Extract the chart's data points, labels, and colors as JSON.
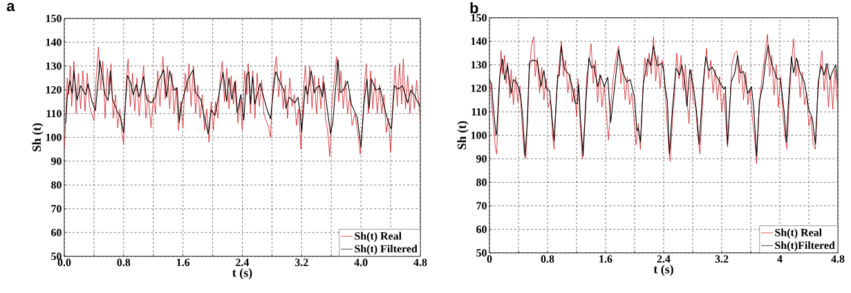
{
  "chart_data": [
    {
      "type": "line",
      "title": "a",
      "xlabel": "t (s)",
      "ylabel": "Sh (t)",
      "xlim": [
        0,
        4.8
      ],
      "ylim": [
        50,
        150
      ],
      "xticks": [
        {
          "value": 0,
          "label": "0.0"
        },
        {
          "value": 0.4,
          "label": null
        },
        0.8,
        {
          "value": 1.2,
          "label": null
        },
        1.6,
        {
          "value": 2.0,
          "label": null
        },
        2.4,
        {
          "value": 2.8,
          "label": null
        },
        3.2,
        {
          "value": 3.6,
          "label": null
        },
        {
          "value": 4,
          "label": "4.0"
        },
        {
          "value": 4.4,
          "label": null
        },
        4.8
      ],
      "yticks": [
        50,
        60,
        70,
        80,
        90,
        100,
        110,
        120,
        130,
        140,
        150
      ],
      "grid": true,
      "legend": "bottom right",
      "series": [
        {
          "name": "Sh(t) Real",
          "color": "#d0141c",
          "x": [
            0,
            0.02,
            0.04,
            0.06,
            0.08,
            0.1,
            0.13,
            0.16,
            0.19,
            0.22,
            0.25,
            0.28,
            0.31,
            0.34,
            0.37,
            0.4,
            0.43,
            0.46,
            0.49,
            0.52,
            0.55,
            0.58,
            0.61,
            0.63,
            0.66,
            0.69,
            0.72,
            0.75,
            0.78,
            0.8,
            0.83,
            0.86,
            0.89,
            0.92,
            0.95,
            0.98,
            1.01,
            1.04,
            1.07,
            1.1,
            1.13,
            1.17,
            1.2,
            1.23,
            1.26,
            1.29,
            1.33,
            1.36,
            1.39,
            1.42,
            1.45,
            1.48,
            1.51,
            1.54,
            1.57,
            1.6,
            1.63,
            1.66,
            1.68,
            1.71,
            1.74,
            1.77,
            1.8,
            1.83,
            1.86,
            1.89,
            1.92,
            1.95,
            1.98,
            2.01,
            2.04,
            2.07,
            2.1,
            2.13,
            2.16,
            2.19,
            2.22,
            2.25,
            2.28,
            2.31,
            2.34,
            2.37,
            2.4,
            2.43,
            2.46,
            2.48,
            2.51,
            2.54,
            2.57,
            2.6,
            2.63,
            2.66,
            2.69,
            2.72,
            2.75,
            2.78,
            2.81,
            2.84,
            2.86,
            2.89,
            2.92,
            2.95,
            2.98,
            3.01,
            3.04,
            3.07,
            3.1,
            3.13,
            3.16,
            3.19,
            3.22,
            3.25,
            3.28,
            3.31,
            3.34,
            3.37,
            3.4,
            3.43,
            3.46,
            3.49,
            3.52,
            3.55,
            3.58,
            3.61,
            3.64,
            3.67,
            3.7,
            3.73,
            3.76,
            3.79,
            3.82,
            3.85,
            3.88,
            3.92,
            3.96,
            3.99,
            4.02,
            4.05,
            4.07,
            4.1,
            4.13,
            4.16,
            4.19,
            4.22,
            4.25,
            4.28,
            4.31,
            4.34,
            4.37,
            4.4,
            4.43,
            4.46,
            4.49,
            4.52,
            4.55,
            4.57,
            4.6,
            4.63,
            4.66,
            4.69,
            4.72,
            4.75,
            4.78,
            4.8
          ],
          "values": [
            95,
            108,
            125,
            118,
            130,
            113,
            132,
            110,
            127,
            112,
            128,
            111,
            127,
            113,
            110,
            107,
            125,
            138,
            120,
            132,
            108,
            129,
            118,
            131,
            108,
            118,
            104,
            112,
            101,
            97,
            120,
            133,
            113,
            127,
            111,
            125,
            109,
            120,
            130,
            108,
            118,
            104,
            117,
            110,
            128,
            113,
            134,
            116,
            130,
            112,
            127,
            110,
            121,
            103,
            115,
            104,
            127,
            119,
            131,
            113,
            130,
            110,
            122,
            108,
            118,
            103,
            112,
            98,
            115,
            103,
            115,
            108,
            124,
            132,
            115,
            129,
            112,
            126,
            114,
            124,
            106,
            116,
            103,
            128,
            118,
            131,
            110,
            128,
            108,
            127,
            113,
            124,
            110,
            107,
            105,
            100,
            120,
            130,
            134,
            117,
            128,
            112,
            122,
            108,
            125,
            113,
            118,
            105,
            112,
            95,
            118,
            130,
            114,
            130,
            112,
            126,
            110,
            125,
            112,
            126,
            108,
            103,
            92,
            115,
            124,
            134,
            115,
            128,
            112,
            124,
            110,
            118,
            105,
            110,
            101,
            93,
            104,
            123,
            131,
            110,
            128,
            112,
            125,
            110,
            122,
            110,
            118,
            102,
            108,
            94,
            115,
            130,
            113,
            131,
            114,
            133,
            112,
            126,
            110,
            122,
            112,
            124,
            114,
            106
          ]
        },
        {
          "name": "Sh(t) Filtered",
          "color": "#000000",
          "x": [
            0.02,
            0.04,
            0.075,
            0.107,
            0.13,
            0.17,
            0.22,
            0.29,
            0.32,
            0.37,
            0.42,
            0.48,
            0.55,
            0.59,
            0.62,
            0.65,
            0.71,
            0.76,
            0.8,
            0.85,
            0.89,
            0.93,
            0.97,
            1.01,
            1.07,
            1.11,
            1.17,
            1.22,
            1.26,
            1.34,
            1.38,
            1.42,
            1.48,
            1.52,
            1.55,
            1.58,
            1.63,
            1.67,
            1.74,
            1.77,
            1.84,
            1.89,
            1.94,
            1.98,
            2.03,
            2.07,
            2.14,
            2.19,
            2.22,
            2.26,
            2.3,
            2.33,
            2.38,
            2.42,
            2.46,
            2.49,
            2.51,
            2.54,
            2.57,
            2.64,
            2.68,
            2.73,
            2.78,
            2.81,
            2.85,
            2.9,
            2.96,
            2.99,
            3.03,
            3.11,
            3.15,
            3.18,
            3.2,
            3.25,
            3.28,
            3.33,
            3.37,
            3.4,
            3.44,
            3.48,
            3.5,
            3.54,
            3.59,
            3.62,
            3.69,
            3.72,
            3.76,
            3.82,
            3.87,
            3.95,
            4.0,
            4.04,
            4.08,
            4.11,
            4.14,
            4.2,
            4.26,
            4.3,
            4.36,
            4.41,
            4.45,
            4.5,
            4.56,
            4.63,
            4.67,
            4.72,
            4.77,
            4.8
          ],
          "values": [
            106,
            117,
            123.8,
            118.4,
            128,
            115.5,
            121.7,
            117.9,
            122.7,
            115.5,
            111.2,
            132.3,
            117.9,
            115.5,
            128,
            116,
            111.2,
            108.3,
            102,
            126,
            123.2,
            117.9,
            122.3,
            116.9,
            125.6,
            116,
            114.5,
            116.4,
            122.7,
            128.5,
            116.9,
            128,
            119.8,
            120.8,
            106.3,
            114,
            119.8,
            124.6,
            128.5,
            118.8,
            116,
            108.3,
            101.5,
            111.6,
            109.2,
            115.5,
            127.5,
            115,
            125.1,
            116,
            123.5,
            110.2,
            118,
            107.3,
            126.5,
            127.5,
            114,
            125.6,
            114,
            122.7,
            117.9,
            112.1,
            107.8,
            116.9,
            127.7,
            123.7,
            119.8,
            112.1,
            116.9,
            114.5,
            116.9,
            110.2,
            102,
            121.7,
            117.9,
            128,
            118.8,
            120.8,
            121.7,
            117,
            123.2,
            113,
            101.5,
            106.3,
            132.8,
            118.8,
            119.8,
            123.7,
            114,
            108.3,
            95.8,
            114,
            124.6,
            112.1,
            124.6,
            119.8,
            120.8,
            114.5,
            107.3,
            103.5,
            121.7,
            120.3,
            121.7,
            114.5,
            119.8,
            117.9,
            114.5,
            113
          ]
        }
      ]
    },
    {
      "type": "line",
      "title": "b",
      "xlabel": "t (s)",
      "ylabel": "Sh (t)",
      "xlim": [
        0,
        4.8
      ],
      "ylim": [
        50,
        150
      ],
      "xticks": [
        0,
        {
          "value": 0.4,
          "label": null
        },
        0.8,
        {
          "value": 1.2,
          "label": null
        },
        1.6,
        {
          "value": 2.0,
          "label": null
        },
        2.4,
        {
          "value": 2.8,
          "label": null
        },
        3.2,
        {
          "value": 3.6,
          "label": null
        },
        4,
        {
          "value": 4.4,
          "label": null
        },
        4.8
      ],
      "yticks": [
        50,
        60,
        70,
        80,
        90,
        100,
        110,
        120,
        130,
        140,
        150
      ],
      "grid": true,
      "legend": "bottom right",
      "series": [
        {
          "name": "Sh(t) Real",
          "color": "#d0141c",
          "x": [
            0,
            0.02,
            0.04,
            0.06,
            0.08,
            0.1,
            0.12,
            0.14,
            0.16,
            0.18,
            0.21,
            0.23,
            0.25,
            0.28,
            0.3,
            0.33,
            0.36,
            0.39,
            0.42,
            0.45,
            0.48,
            0.5,
            0.53,
            0.55,
            0.58,
            0.61,
            0.63,
            0.66,
            0.69,
            0.72,
            0.75,
            0.78,
            0.81,
            0.84,
            0.87,
            0.89,
            0.92,
            0.95,
            0.99,
            1.02,
            1.05,
            1.08,
            1.11,
            1.14,
            1.17,
            1.2,
            1.22,
            1.25,
            1.28,
            1.31,
            1.34,
            1.37,
            1.4,
            1.43,
            1.46,
            1.49,
            1.52,
            1.55,
            1.58,
            1.61,
            1.64,
            1.67,
            1.7,
            1.75,
            1.78,
            1.81,
            1.84,
            1.87,
            1.9,
            1.93,
            1.96,
            1.99,
            2.02,
            2.05,
            2.08,
            2.11,
            2.14,
            2.17,
            2.2,
            2.23,
            2.26,
            2.29,
            2.32,
            2.35,
            2.38,
            2.4,
            2.43,
            2.45,
            2.47,
            2.49,
            2.52,
            2.55,
            2.58,
            2.61,
            2.64,
            2.67,
            2.7,
            2.73,
            2.75,
            2.78,
            2.81,
            2.84,
            2.87,
            2.9,
            2.93,
            2.96,
            2.99,
            3.02,
            3.05,
            3.08,
            3.11,
            3.14,
            3.17,
            3.2,
            3.23,
            3.26,
            3.28,
            3.31,
            3.34,
            3.38,
            3.41,
            3.44,
            3.47,
            3.5,
            3.53,
            3.56,
            3.59,
            3.62,
            3.65,
            3.68,
            3.71,
            3.74,
            3.77,
            3.8,
            3.83,
            3.86,
            3.89,
            3.92,
            3.95,
            3.98,
            4.01,
            4.04,
            4.07,
            4.1,
            4.13,
            4.16,
            4.19,
            4.22,
            4.25,
            4.28,
            4.31,
            4.34,
            4.37,
            4.4,
            4.43,
            4.46,
            4.49,
            4.52,
            4.55,
            4.58,
            4.61,
            4.64,
            4.67,
            4.7,
            4.73,
            4.76,
            4.79,
            4.8
          ],
          "values": [
            125,
            118,
            110,
            103,
            95,
            92,
            110,
            122,
            136,
            126,
            134,
            122,
            131,
            116,
            128,
            113,
            125,
            114,
            121,
            104,
            92,
            90,
            110,
            128,
            138,
            142,
            125,
            133,
            118,
            129,
            115,
            124,
            112,
            115,
            100,
            94,
            115,
            127,
            140,
            125,
            132,
            118,
            126,
            114,
            120,
            108,
            124,
            105,
            90,
            105,
            125,
            131,
            139,
            122,
            132,
            114,
            126,
            112,
            121,
            110,
            98,
            112,
            123,
            134,
            138,
            122,
            130,
            115,
            125,
            113,
            118,
            108,
            96,
            105,
            94,
            118,
            133,
            125,
            135,
            126,
            142,
            123,
            134,
            120,
            132,
            128,
            115,
            104,
            94,
            89,
            106,
            118,
            135,
            124,
            134,
            119,
            130,
            112,
            105,
            128,
            115,
            112,
            100,
            92,
            110,
            126,
            137,
            124,
            132,
            118,
            128,
            115,
            125,
            110,
            118,
            104,
            95,
            112,
            130,
            135,
            136,
            122,
            130,
            115,
            127,
            113,
            120,
            108,
            100,
            88,
            108,
            120,
            128,
            135,
            143,
            125,
            134,
            117,
            130,
            112,
            125,
            110,
            100,
            94,
            115,
            130,
            141,
            125,
            132,
            116,
            127,
            113,
            118,
            104,
            108,
            96,
            94,
            115,
            128,
            136,
            119,
            129,
            112,
            125,
            111,
            128,
            115,
            112
          ]
        },
        {
          "name": "Sh(t)Filtered",
          "color": "#000000",
          "x": [
            0,
            0.03,
            0.05,
            0.09,
            0.1,
            0.14,
            0.18,
            0.21,
            0.25,
            0.3,
            0.33,
            0.38,
            0.43,
            0.46,
            0.49,
            0.52,
            0.55,
            0.59,
            0.66,
            0.71,
            0.75,
            0.78,
            0.83,
            0.87,
            0.89,
            0.94,
            0.96,
            0.99,
            1.03,
            1.1,
            1.14,
            1.18,
            1.21,
            1.23,
            1.25,
            1.29,
            1.33,
            1.37,
            1.41,
            1.44,
            1.49,
            1.53,
            1.58,
            1.63,
            1.67,
            1.71,
            1.78,
            1.83,
            1.89,
            1.94,
            2.0,
            2.03,
            2.05,
            2.08,
            2.12,
            2.18,
            2.22,
            2.26,
            2.31,
            2.37,
            2.4,
            2.42,
            2.45,
            2.48,
            2.52,
            2.57,
            2.62,
            2.65,
            2.69,
            2.72,
            2.76,
            2.81,
            2.85,
            2.89,
            2.94,
            2.98,
            3.02,
            3.07,
            3.12,
            3.18,
            3.23,
            3.25,
            3.28,
            3.33,
            3.38,
            3.42,
            3.45,
            3.5,
            3.56,
            3.61,
            3.64,
            3.68,
            3.72,
            3.77,
            3.8,
            3.84,
            3.87,
            3.92,
            3.96,
            4.01,
            4.06,
            4.09,
            4.12,
            4.16,
            4.19,
            4.23,
            4.28,
            4.34,
            4.4,
            4.45,
            4.49,
            4.53,
            4.57,
            4.61,
            4.65,
            4.69,
            4.72,
            4.77,
            4.8
          ],
          "values": [
            123.7,
            121.7,
            112.9,
            100.1,
            101,
            124.7,
            132.5,
            123.7,
            129.6,
            117.8,
            123.7,
            122.2,
            116.8,
            107,
            91.2,
            105,
            130.6,
            132,
            131.5,
            120.7,
            127.6,
            120.2,
            118.8,
            105,
            97.6,
            125.6,
            125.2,
            138,
            128.6,
            125.6,
            120.7,
            113.8,
            113.4,
            121.7,
            108.9,
            91.2,
            114.8,
            133,
            128.6,
            129.6,
            120.7,
            125.6,
            120.7,
            124.7,
            105.5,
            116.8,
            136.5,
            127.6,
            122.7,
            123.7,
            115.8,
            102,
            103,
            97.1,
            121.7,
            132.5,
            129.6,
            138,
            129.6,
            130.6,
            128,
            120.7,
            114.8,
            92.2,
            110.9,
            128.6,
            125.6,
            130,
            122.7,
            112.4,
            128,
            120.7,
            110.9,
            96.1,
            120.7,
            133.5,
            127.6,
            129,
            125.6,
            122.2,
            119.7,
            120.7,
            96.1,
            122.7,
            126.6,
            134,
            126.6,
            127.1,
            117.8,
            120.7,
            111.9,
            91.2,
            114.8,
            121.7,
            130.6,
            138.4,
            132.5,
            127.6,
            124.2,
            123.7,
            109.9,
            97.1,
            114.8,
            133.5,
            126.6,
            132.9,
            126.6,
            122.7,
            110.9,
            107,
            96.1,
            122.7,
            129.6,
            125.6,
            130.6,
            123.7,
            126.6,
            130,
            120.7
          ]
        }
      ]
    }
  ]
}
